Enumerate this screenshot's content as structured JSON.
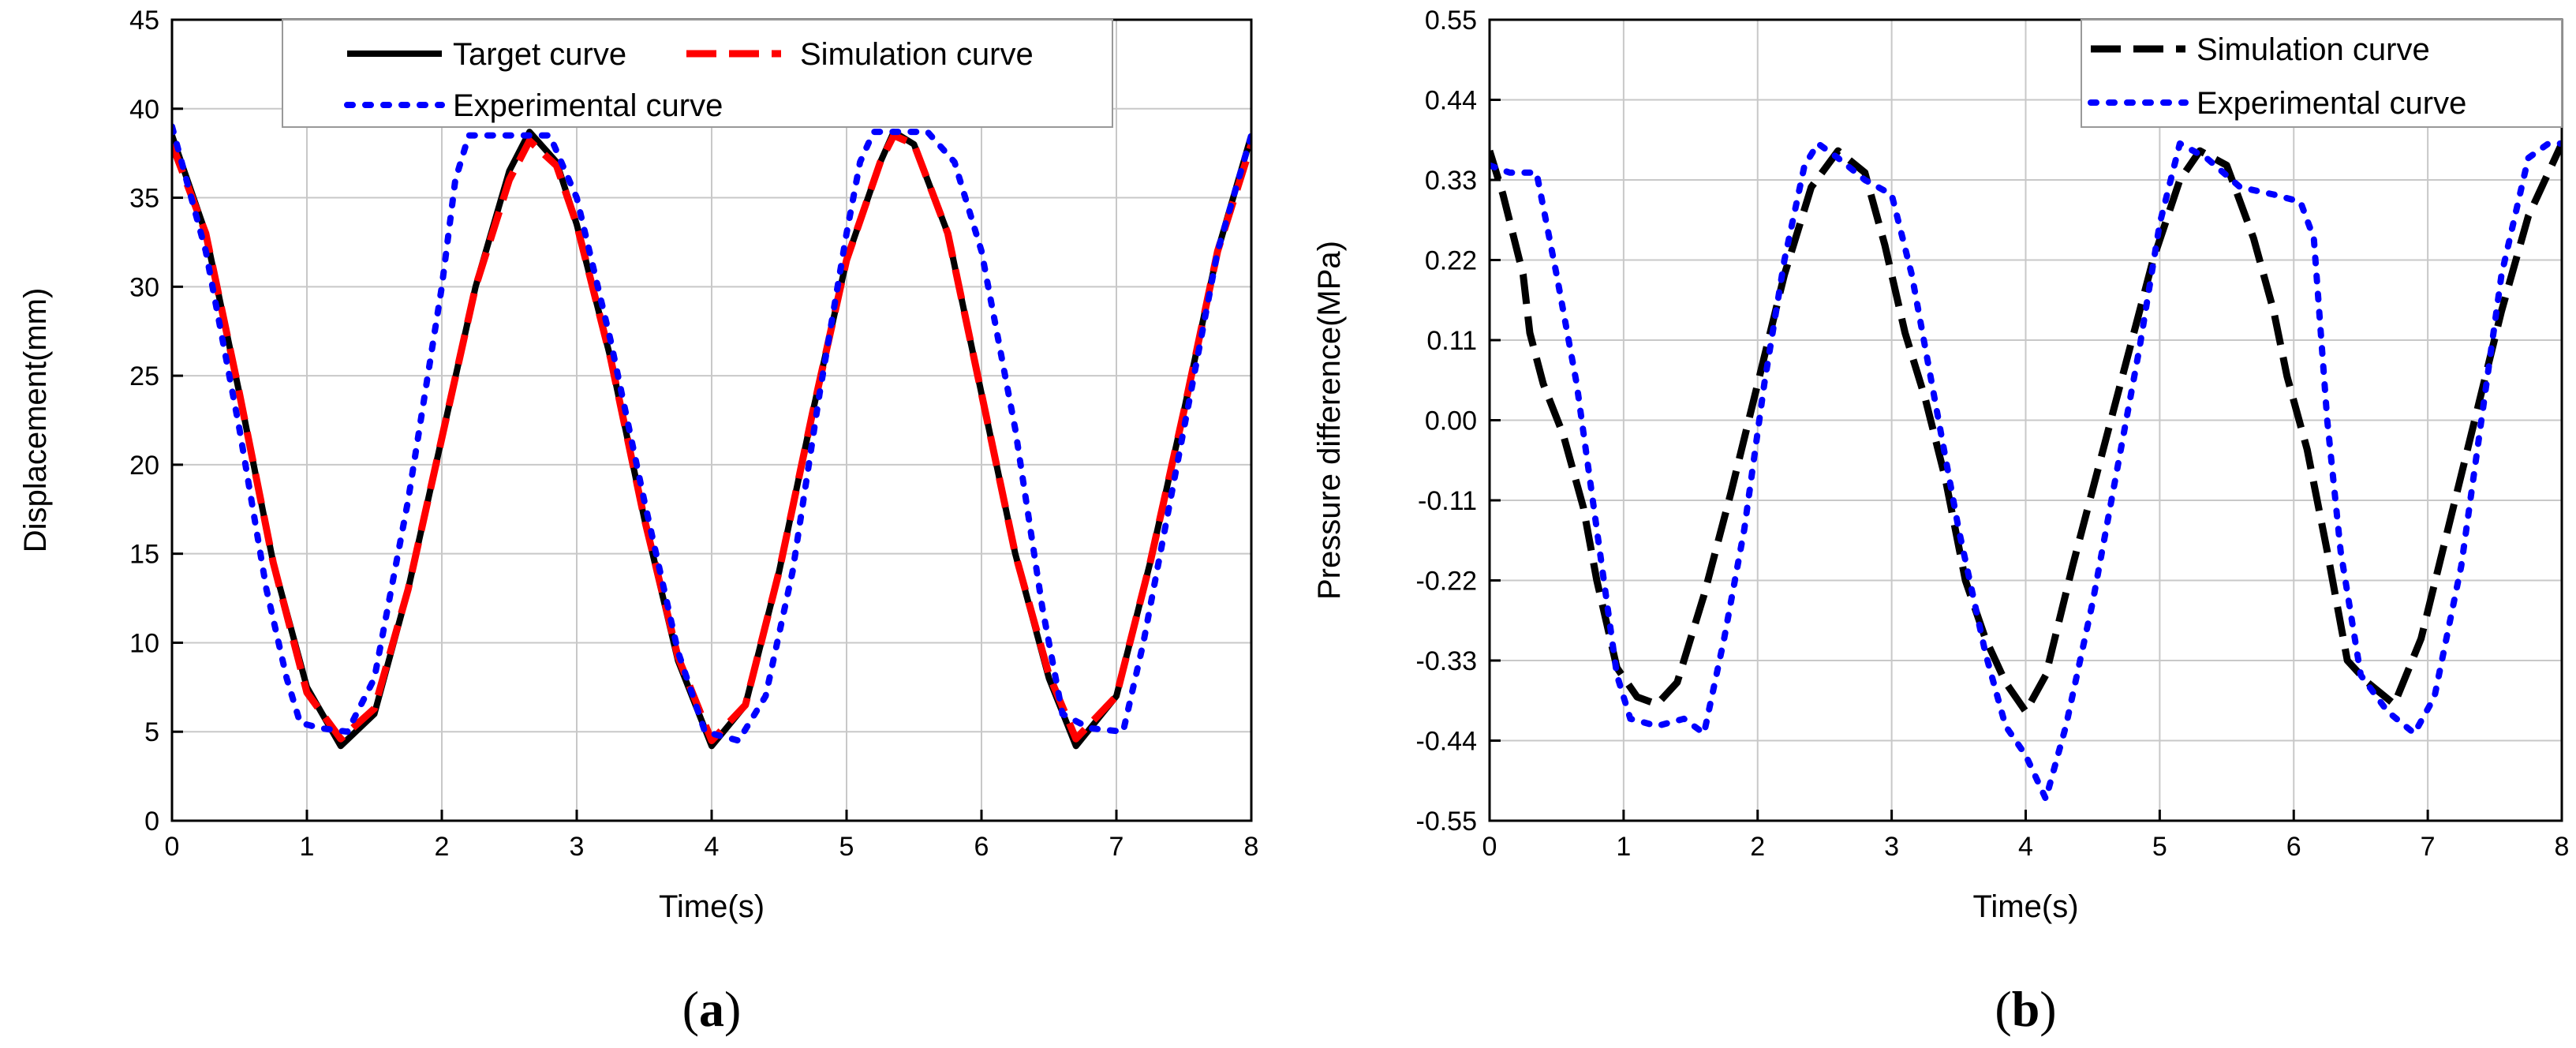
{
  "chart_data": [
    {
      "id": "a",
      "type": "line",
      "panel_label": "a",
      "xlabel": "Time(s)",
      "ylabel": "Displacement(mm)",
      "xlim": [
        0,
        8
      ],
      "ylim": [
        0,
        45
      ],
      "xticks": [
        0,
        1,
        2,
        3,
        4,
        5,
        6,
        7,
        8
      ],
      "yticks": [
        0,
        5,
        10,
        15,
        20,
        25,
        30,
        35,
        40,
        45
      ],
      "grid": true,
      "legend_position": "top-center",
      "series": [
        {
          "name": "Target curve",
          "color": "#000000",
          "style": "solid",
          "points": [
            [
              0,
              38.5
            ],
            [
              0.25,
              33
            ],
            [
              0.5,
              24
            ],
            [
              0.75,
              14.5
            ],
            [
              1.0,
              7.5
            ],
            [
              1.25,
              4.2
            ],
            [
              1.5,
              6
            ],
            [
              1.75,
              13
            ],
            [
              2.0,
              21.5
            ],
            [
              2.25,
              30
            ],
            [
              2.5,
              36.5
            ],
            [
              2.65,
              38.7
            ],
            [
              2.85,
              37
            ],
            [
              3.0,
              33.5
            ],
            [
              3.25,
              26
            ],
            [
              3.5,
              17
            ],
            [
              3.75,
              9
            ],
            [
              4.0,
              4.2
            ],
            [
              4.25,
              6.5
            ],
            [
              4.5,
              14
            ],
            [
              4.75,
              23
            ],
            [
              5.0,
              31.5
            ],
            [
              5.25,
              37
            ],
            [
              5.35,
              38.7
            ],
            [
              5.5,
              38
            ],
            [
              5.75,
              33
            ],
            [
              6.0,
              24
            ],
            [
              6.25,
              15
            ],
            [
              6.5,
              8
            ],
            [
              6.7,
              4.2
            ],
            [
              7.0,
              7
            ],
            [
              7.25,
              14.5
            ],
            [
              7.5,
              23
            ],
            [
              7.75,
              32
            ],
            [
              8.0,
              38.5
            ]
          ]
        },
        {
          "name": "Simulation curve",
          "color": "#ff0000",
          "style": "dash",
          "points": [
            [
              0,
              38
            ],
            [
              0.25,
              33
            ],
            [
              0.5,
              24
            ],
            [
              0.75,
              14.5
            ],
            [
              1.0,
              7.2
            ],
            [
              1.25,
              4.6
            ],
            [
              1.5,
              6.3
            ],
            [
              1.75,
              13
            ],
            [
              2.0,
              21.5
            ],
            [
              2.25,
              30
            ],
            [
              2.5,
              36
            ],
            [
              2.65,
              38.2
            ],
            [
              2.85,
              36.8
            ],
            [
              3.0,
              33.5
            ],
            [
              3.25,
              26
            ],
            [
              3.5,
              17
            ],
            [
              3.75,
              9.2
            ],
            [
              4.0,
              4.5
            ],
            [
              4.25,
              6.5
            ],
            [
              4.5,
              14
            ],
            [
              4.75,
              23
            ],
            [
              5.0,
              31.5
            ],
            [
              5.25,
              37
            ],
            [
              5.35,
              38.5
            ],
            [
              5.5,
              38
            ],
            [
              5.75,
              33
            ],
            [
              6.0,
              24
            ],
            [
              6.25,
              15
            ],
            [
              6.5,
              8.2
            ],
            [
              6.7,
              4.6
            ],
            [
              7.0,
              7
            ],
            [
              7.25,
              14.5
            ],
            [
              7.5,
              23
            ],
            [
              7.75,
              32
            ],
            [
              8.0,
              38
            ]
          ]
        },
        {
          "name": "Experimental curve",
          "color": "#0000ff",
          "style": "dot",
          "points": [
            [
              0,
              39
            ],
            [
              0.25,
              32
            ],
            [
              0.5,
              22
            ],
            [
              0.7,
              13
            ],
            [
              0.85,
              8
            ],
            [
              0.95,
              5.5
            ],
            [
              1.1,
              5.2
            ],
            [
              1.3,
              5
            ],
            [
              1.5,
              8
            ],
            [
              1.75,
              18
            ],
            [
              2.0,
              30
            ],
            [
              2.1,
              36
            ],
            [
              2.2,
              38.5
            ],
            [
              2.5,
              38.5
            ],
            [
              2.8,
              38.5
            ],
            [
              3.0,
              35
            ],
            [
              3.25,
              27
            ],
            [
              3.5,
              18
            ],
            [
              3.75,
              9.5
            ],
            [
              3.95,
              5
            ],
            [
              4.2,
              4.5
            ],
            [
              4.4,
              7
            ],
            [
              4.6,
              14
            ],
            [
              4.8,
              24
            ],
            [
              5.0,
              33
            ],
            [
              5.1,
              37
            ],
            [
              5.2,
              38.7
            ],
            [
              5.6,
              38.7
            ],
            [
              5.8,
              37
            ],
            [
              6.0,
              32
            ],
            [
              6.25,
              22
            ],
            [
              6.45,
              12
            ],
            [
              6.6,
              6
            ],
            [
              6.8,
              5.2
            ],
            [
              7.05,
              5
            ],
            [
              7.2,
              10
            ],
            [
              7.5,
              22
            ],
            [
              7.75,
              32
            ],
            [
              8.0,
              38.5
            ]
          ]
        }
      ]
    },
    {
      "id": "b",
      "type": "line",
      "panel_label": "b",
      "xlabel": "Time(s)",
      "ylabel": "Pressure difference(MPa)",
      "xlim": [
        0,
        8
      ],
      "ylim": [
        -0.55,
        0.55
      ],
      "xticks": [
        0,
        1,
        2,
        3,
        4,
        5,
        6,
        7,
        8
      ],
      "yticks": [
        -0.55,
        -0.44,
        -0.33,
        -0.22,
        -0.11,
        0.0,
        0.11,
        0.22,
        0.33,
        0.44,
        0.55
      ],
      "ytick_labels": [
        "-0.55",
        "-0.44",
        "-0.33",
        "-0.22",
        "-0.11",
        "0.00",
        "0.11",
        "0.22",
        "0.33",
        "0.44",
        "0.55"
      ],
      "grid": true,
      "legend_position": "top-right",
      "series": [
        {
          "name": "Simulation curve",
          "color": "#000000",
          "style": "dash",
          "points": [
            [
              0,
              0.37
            ],
            [
              0.1,
              0.31
            ],
            [
              0.25,
              0.2
            ],
            [
              0.3,
              0.12
            ],
            [
              0.4,
              0.05
            ],
            [
              0.55,
              -0.02
            ],
            [
              0.7,
              -0.12
            ],
            [
              0.8,
              -0.22
            ],
            [
              0.95,
              -0.34
            ],
            [
              1.1,
              -0.38
            ],
            [
              1.25,
              -0.39
            ],
            [
              1.4,
              -0.36
            ],
            [
              1.6,
              -0.24
            ],
            [
              1.8,
              -0.1
            ],
            [
              2.0,
              0.05
            ],
            [
              2.2,
              0.2
            ],
            [
              2.4,
              0.32
            ],
            [
              2.6,
              0.37
            ],
            [
              2.8,
              0.34
            ],
            [
              2.95,
              0.24
            ],
            [
              3.1,
              0.12
            ],
            [
              3.25,
              0.03
            ],
            [
              3.4,
              -0.08
            ],
            [
              3.55,
              -0.22
            ],
            [
              3.7,
              -0.3
            ],
            [
              3.85,
              -0.36
            ],
            [
              4.0,
              -0.4
            ],
            [
              4.15,
              -0.35
            ],
            [
              4.35,
              -0.2
            ],
            [
              4.55,
              -0.06
            ],
            [
              4.75,
              0.08
            ],
            [
              4.95,
              0.22
            ],
            [
              5.15,
              0.33
            ],
            [
              5.3,
              0.37
            ],
            [
              5.5,
              0.35
            ],
            [
              5.7,
              0.25
            ],
            [
              5.85,
              0.15
            ],
            [
              5.95,
              0.06
            ],
            [
              6.1,
              -0.04
            ],
            [
              6.25,
              -0.18
            ],
            [
              6.4,
              -0.33
            ],
            [
              6.55,
              -0.36
            ],
            [
              6.75,
              -0.39
            ],
            [
              6.95,
              -0.3
            ],
            [
              7.15,
              -0.15
            ],
            [
              7.35,
              0.0
            ],
            [
              7.55,
              0.15
            ],
            [
              7.75,
              0.28
            ],
            [
              8.0,
              0.38
            ]
          ]
        },
        {
          "name": "Experimental curve",
          "color": "#0000ff",
          "style": "dot",
          "points": [
            [
              0,
              0.35
            ],
            [
              0.15,
              0.34
            ],
            [
              0.35,
              0.34
            ],
            [
              0.5,
              0.2
            ],
            [
              0.65,
              0.05
            ],
            [
              0.8,
              -0.15
            ],
            [
              0.95,
              -0.35
            ],
            [
              1.05,
              -0.41
            ],
            [
              1.25,
              -0.42
            ],
            [
              1.45,
              -0.41
            ],
            [
              1.6,
              -0.43
            ],
            [
              1.75,
              -0.3
            ],
            [
              1.9,
              -0.15
            ],
            [
              2.05,
              0.05
            ],
            [
              2.2,
              0.22
            ],
            [
              2.35,
              0.35
            ],
            [
              2.45,
              0.38
            ],
            [
              2.6,
              0.36
            ],
            [
              2.8,
              0.33
            ],
            [
              3.0,
              0.31
            ],
            [
              3.15,
              0.2
            ],
            [
              3.3,
              0.05
            ],
            [
              3.5,
              -0.15
            ],
            [
              3.7,
              -0.32
            ],
            [
              3.85,
              -0.42
            ],
            [
              4.0,
              -0.46
            ],
            [
              4.15,
              -0.52
            ],
            [
              4.3,
              -0.42
            ],
            [
              4.5,
              -0.25
            ],
            [
              4.7,
              -0.05
            ],
            [
              4.85,
              0.1
            ],
            [
              5.0,
              0.27
            ],
            [
              5.15,
              0.38
            ],
            [
              5.35,
              0.36
            ],
            [
              5.6,
              0.32
            ],
            [
              5.85,
              0.31
            ],
            [
              6.05,
              0.3
            ],
            [
              6.15,
              0.25
            ],
            [
              6.25,
              0.0
            ],
            [
              6.35,
              -0.18
            ],
            [
              6.5,
              -0.35
            ],
            [
              6.7,
              -0.4
            ],
            [
              6.9,
              -0.43
            ],
            [
              7.05,
              -0.38
            ],
            [
              7.25,
              -0.2
            ],
            [
              7.4,
              0.0
            ],
            [
              7.55,
              0.2
            ],
            [
              7.75,
              0.36
            ],
            [
              7.9,
              0.38
            ],
            [
              8.0,
              0.38
            ]
          ]
        }
      ]
    }
  ]
}
